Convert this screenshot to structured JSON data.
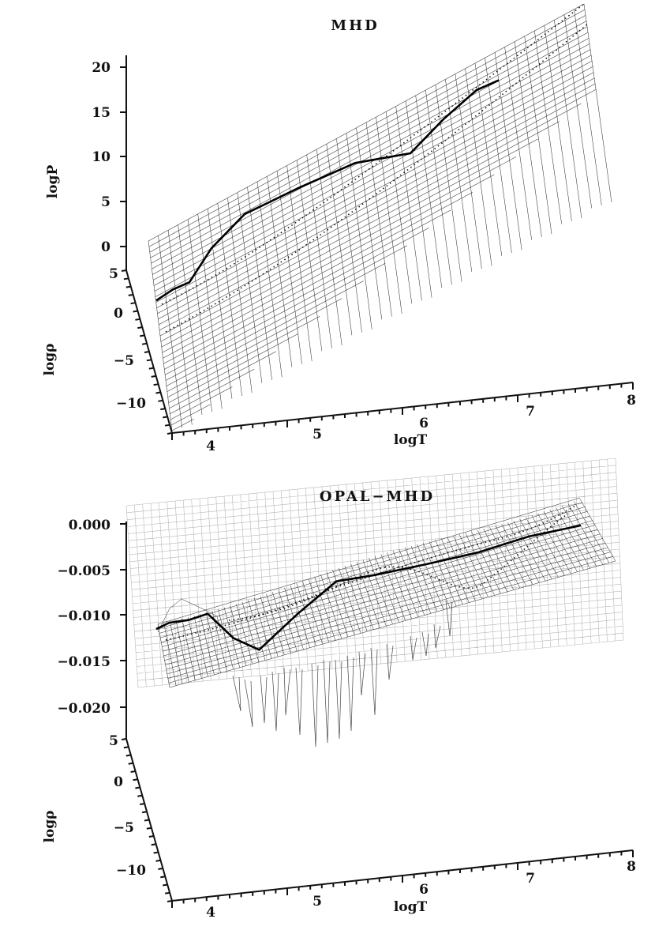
{
  "chart_data": [
    {
      "type": "surface",
      "title": "MHD",
      "xlabel": "logT",
      "ylabel": "logρ",
      "zlabel": "logP",
      "x_ticks": [
        "4",
        "5",
        "6",
        "7",
        "8"
      ],
      "y_ticks": [
        "5",
        "0",
        "−5",
        "−10"
      ],
      "z_ticks": [
        "20",
        "15",
        "10",
        "5",
        "0"
      ],
      "xlim": [
        3.7,
        8
      ],
      "ylim": [
        -12,
        5
      ],
      "zlim": [
        0,
        20
      ],
      "ridge_curve": {
        "logT": [
          3.7,
          3.85,
          4.0,
          4.2,
          4.5,
          5.0,
          5.5,
          6.0,
          6.3,
          6.6,
          6.8
        ],
        "logP": [
          0.5,
          1.4,
          2.0,
          4.8,
          7.6,
          9.8,
          11.8,
          12.6,
          15.4,
          17.8,
          18.6
        ]
      }
    },
    {
      "type": "surface",
      "title": "OPAL−MHD",
      "xlabel": "logT",
      "ylabel": "logρ",
      "x_ticks": [
        "4",
        "5",
        "6",
        "7",
        "8"
      ],
      "y_ticks": [
        "5",
        "0",
        "−5",
        "−10"
      ],
      "z_ticks": [
        "0.000",
        "−0.005",
        "−0.010",
        "−0.015",
        "−0.020"
      ],
      "xlim": [
        3.7,
        8
      ],
      "ylim": [
        -12,
        5
      ],
      "zlim": [
        -0.022,
        0.001
      ],
      "ridge_curve": {
        "logT": [
          3.7,
          3.8,
          3.95,
          4.1,
          4.3,
          4.5,
          4.8,
          5.1,
          5.4,
          5.8,
          6.2,
          6.6,
          7.0
        ],
        "dP": [
          -0.0115,
          -0.0108,
          -0.0105,
          -0.0098,
          -0.0125,
          -0.0138,
          -0.0098,
          -0.0062,
          -0.0055,
          -0.0043,
          -0.003,
          -0.0012,
          0.0
        ]
      }
    }
  ]
}
